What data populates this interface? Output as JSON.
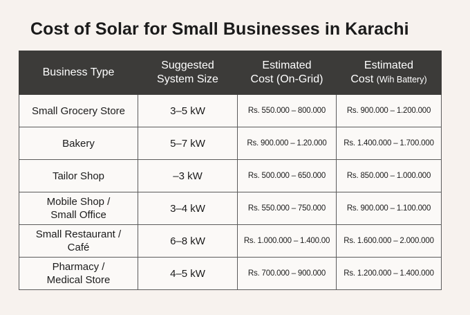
{
  "title": "Cost of Solar for Small Businesses in Karachi",
  "table": {
    "headers": {
      "business_type": "Business Type",
      "system_size_line1": "Suggested",
      "system_size_line2": "System Size",
      "on_grid_line1": "Estimated",
      "on_grid_line2": "Cost (On-Grid)",
      "battery_line1": "Estimated",
      "battery_line2a": "Cost ",
      "battery_line2b": "(Wih Battery)"
    },
    "rows": [
      {
        "type_line1": "Small Grocery Store",
        "type_line2": "",
        "size": "3–5 kW",
        "on_grid": "Rs. 550.000 – 800.000",
        "battery": "Rs. 900.000 – 1.200.000"
      },
      {
        "type_line1": "Bakery",
        "type_line2": "",
        "size": "5–7 kW",
        "on_grid": "Rs. 900.000 – 1.20.000",
        "battery": "Rs. 1.400.000 – 1.700.000"
      },
      {
        "type_line1": "Tailor Shop",
        "type_line2": "",
        "size": "–3 kW",
        "on_grid": "Rs. 500.000 – 650.000",
        "battery": "Rs. 850.000 – 1.000.000"
      },
      {
        "type_line1": "Mobile Shop /",
        "type_line2": "Small Office",
        "size": "3–4 kW",
        "on_grid": "Rs. 550.000 – 750.000",
        "battery": "Rs. 900.000 – 1.100.000"
      },
      {
        "type_line1": "Small Restaurant /",
        "type_line2": "Café",
        "size": "6–8 kW",
        "on_grid": "Rs. 1.000.000 – 1.400.00",
        "battery": "Rs. 1.600.000 – 2.000.000"
      },
      {
        "type_line1": "Pharmacy /",
        "type_line2": "Medical Store",
        "size": "4–5 kW",
        "on_grid": "Rs. 700.000 – 900.000",
        "battery": "Rs. 1.200.000 – 1.400.000"
      }
    ]
  }
}
